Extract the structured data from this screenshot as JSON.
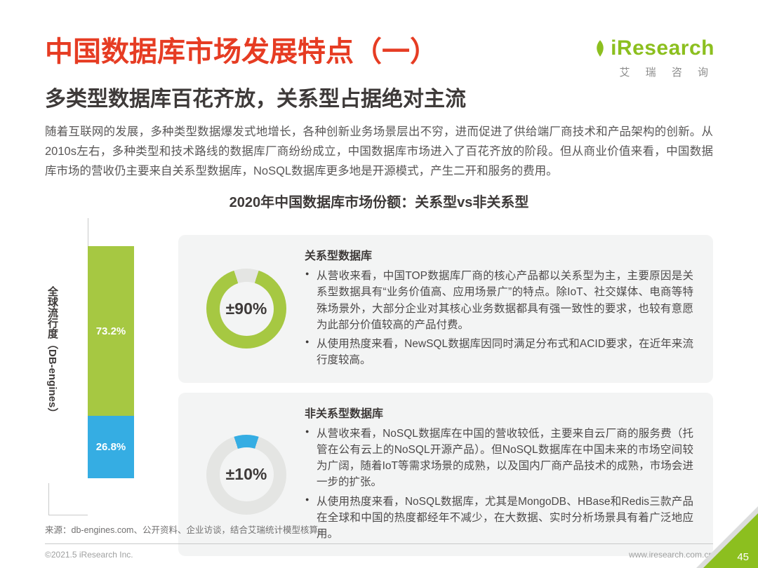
{
  "logo": {
    "brand": "iResearch",
    "brand_cn": "艾 瑞 咨 询"
  },
  "header": {
    "title": "中国数据库市场发展特点（一）",
    "subtitle": "多类型数据库百花齐放，关系型占据绝对主流",
    "paragraph": "随着互联网的发展，多种类型数据爆发式地增长，各种创新业务场景层出不穷，进而促进了供给端厂商技术和产品架构的创新。从2010s左右，多种类型和技术路线的数据库厂商纷纷成立，中国数据库市场进入了百花齐放的阶段。但从商业价值来看，中国数据库市场的营收仍主要来自关系型数据库，NoSQL数据库更多地是开源模式，产生二开和服务的费用。"
  },
  "chart_data": {
    "type": "bar",
    "title": "2020年中国数据库市场份额：关系型vs非关系型",
    "ylabel_line1": "全球流行度",
    "ylabel_line2": "（DB-engines）",
    "ylim": [
      0,
      100
    ],
    "unit": "%",
    "stack": [
      {
        "name": "关系型数据库",
        "value": 73.2,
        "label": "73.2%",
        "color": "#A6C842"
      },
      {
        "name": "非关系型数据库",
        "value": 26.8,
        "label": "26.8%",
        "color": "#35ADE3"
      }
    ],
    "donuts": [
      {
        "name": "关系型数据库",
        "label": "±90%",
        "value": 90,
        "color": "#A6C842",
        "track": "#E4E5E3",
        "start_deg": 18
      },
      {
        "name": "非关系型数据库",
        "label": "±10%",
        "value": 10,
        "color": "#35ADE3",
        "track": "#E4E5E3",
        "start_deg": -18
      }
    ]
  },
  "sections": [
    {
      "heading": "关系型数据库",
      "bullets": [
        "从营收来看，中国TOP数据库厂商的核心产品都以关系型为主，主要原因是关系型数据具有“业务价值高、应用场景广”的特点。除IoT、社交媒体、电商等特殊场景外，大部分企业对其核心业务数据都具有强一致性的要求，也较有意愿为此部分价值较高的产品付费。",
        "从使用热度来看，NewSQL数据库因同时满足分布式和ACID要求，在近年来流行度较高。"
      ]
    },
    {
      "heading": "非关系型数据库",
      "bullets": [
        "从营收来看，NoSQL数据库在中国的营收较低，主要来自云厂商的服务费（托管在公有云上的NoSQL开源产品）。但NoSQL数据库在中国未来的市场空间较为广阔，随着IoT等需求场景的成熟，以及国内厂商产品技术的成熟，市场会进一步的扩张。",
        "从使用热度来看，NoSQL数据库，尤其是MongoDB、HBase和Redis三款产品在全球和中国的热度都经年不减少，在大数据、实时分析场景具有着广泛地应用。"
      ]
    }
  ],
  "source": "来源：db-engines.com、公开资料、企业访谈，结合艾瑞统计模型核算。",
  "footer": {
    "copyright": "©2021.5 iResearch Inc.",
    "website": "www.iresearch.com.cn",
    "page_number": "45"
  },
  "colors": {
    "red": "#E63C23",
    "green": "#A6C842",
    "blue": "#35ADE3",
    "logo-green": "#8CBF1F",
    "dark": "#3E3A39",
    "body": "#595757",
    "card-bg": "#F3F4F4",
    "line": "#C9CACA",
    "muted": "#9FA0A0",
    "source": "#727171",
    "corner-gray": "#DCDDDD"
  }
}
